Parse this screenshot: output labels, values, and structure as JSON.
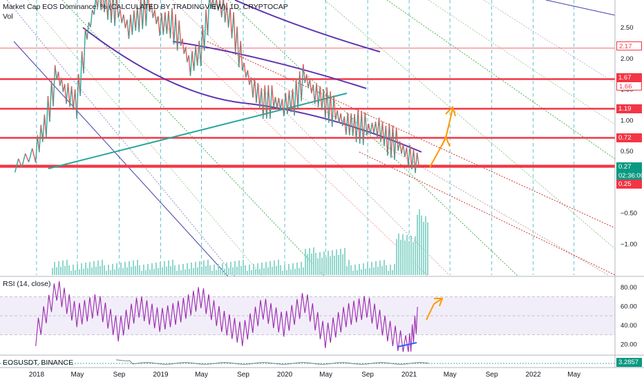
{
  "header": {
    "title": "Market Cap EOS Dominance, % (CALCULATED BY TRADINGVIEW), 1D, CRYPTOCAP",
    "vol_label": "Vol"
  },
  "rsi_pane": {
    "title": "RSI (14, close)",
    "ticks": [
      "80.00",
      "60.00",
      "40.00",
      "20.00"
    ]
  },
  "eos_pane": {
    "title": "EOSUSDT, BINANCE",
    "price_tag": "3.2857"
  },
  "price_axis": {
    "ticks": [
      "2.50",
      "2.00",
      "1.50",
      "1.00",
      "0.50",
      "−0.50",
      "−1.00"
    ],
    "tags": [
      {
        "text": "2.17",
        "color": "#f23645",
        "solid": false
      },
      {
        "text": "1.67",
        "color": "#f23645",
        "solid": true
      },
      {
        "text": "1.66",
        "color": "#f23645",
        "solid": false
      },
      {
        "text": "1.19",
        "color": "#f23645",
        "solid": true
      },
      {
        "text": "0.72",
        "color": "#f23645",
        "solid": true
      },
      {
        "text": "0.27",
        "color": "#089981",
        "solid": true
      },
      {
        "text": "02:36:00",
        "color": "#089981",
        "solid": true
      },
      {
        "text": "0.25",
        "color": "#f23645",
        "solid": true
      }
    ]
  },
  "time_axis": [
    "2018",
    "May",
    "Sep",
    "2019",
    "May",
    "Sep",
    "2020",
    "May",
    "Sep",
    "2021",
    "May",
    "Sep",
    "2022",
    "May"
  ],
  "chart_data": {
    "type": "line",
    "title": "Market Cap EOS Dominance, % (CALCULATED BY TRADINGVIEW), 1D, CRYPTOCAP",
    "x_range": [
      "2017-09",
      "2022-08"
    ],
    "ylim": [
      -1.5,
      2.95
    ],
    "horizontal_levels": [
      2.17,
      1.67,
      1.19,
      0.72,
      0.27,
      0.25
    ],
    "series": [
      {
        "x": [
          "2017-10",
          "2017-12",
          "2018-01",
          "2018-02",
          "2018-03",
          "2018-04",
          "2018-05",
          "2018-06",
          "2018-07",
          "2018-08",
          "2018-09",
          "2018-10",
          "2018-11",
          "2018-12",
          "2019-01",
          "2019-02",
          "2019-03",
          "2019-04",
          "2019-05",
          "2019-06",
          "2019-07",
          "2019-08",
          "2019-09",
          "2019-10",
          "2019-11",
          "2019-12",
          "2020-01",
          "2020-02",
          "2020-03",
          "2020-04",
          "2020-05",
          "2020-06",
          "2020-07",
          "2020-08",
          "2020-09",
          "2020-10",
          "2020-11",
          "2020-12",
          "2021-01"
        ],
        "values": [
          0.25,
          0.5,
          1.0,
          1.75,
          1.45,
          1.3,
          2.4,
          3.0,
          2.9,
          2.75,
          2.5,
          2.7,
          2.85,
          2.55,
          2.6,
          2.3,
          1.9,
          2.15,
          2.9,
          2.85,
          2.6,
          1.9,
          1.55,
          1.3,
          1.3,
          1.25,
          1.35,
          1.7,
          1.45,
          1.3,
          1.1,
          0.95,
          0.92,
          0.85,
          0.9,
          0.7,
          0.6,
          0.45,
          0.27
        ]
      }
    ],
    "rsi": {
      "ylim": [
        10,
        90
      ],
      "band": [
        30,
        70
      ],
      "x": [
        "2017-12",
        "2018-02",
        "2018-04",
        "2018-06",
        "2018-08",
        "2018-10",
        "2018-12",
        "2019-02",
        "2019-04",
        "2019-06",
        "2019-08",
        "2019-10",
        "2019-12",
        "2020-02",
        "2020-04",
        "2020-06",
        "2020-08",
        "2020-10",
        "2020-12",
        "2021-01"
      ],
      "values": [
        30,
        78,
        50,
        62,
        35,
        60,
        45,
        55,
        70,
        45,
        30,
        58,
        40,
        65,
        28,
        50,
        60,
        35,
        15,
        52
      ]
    }
  }
}
